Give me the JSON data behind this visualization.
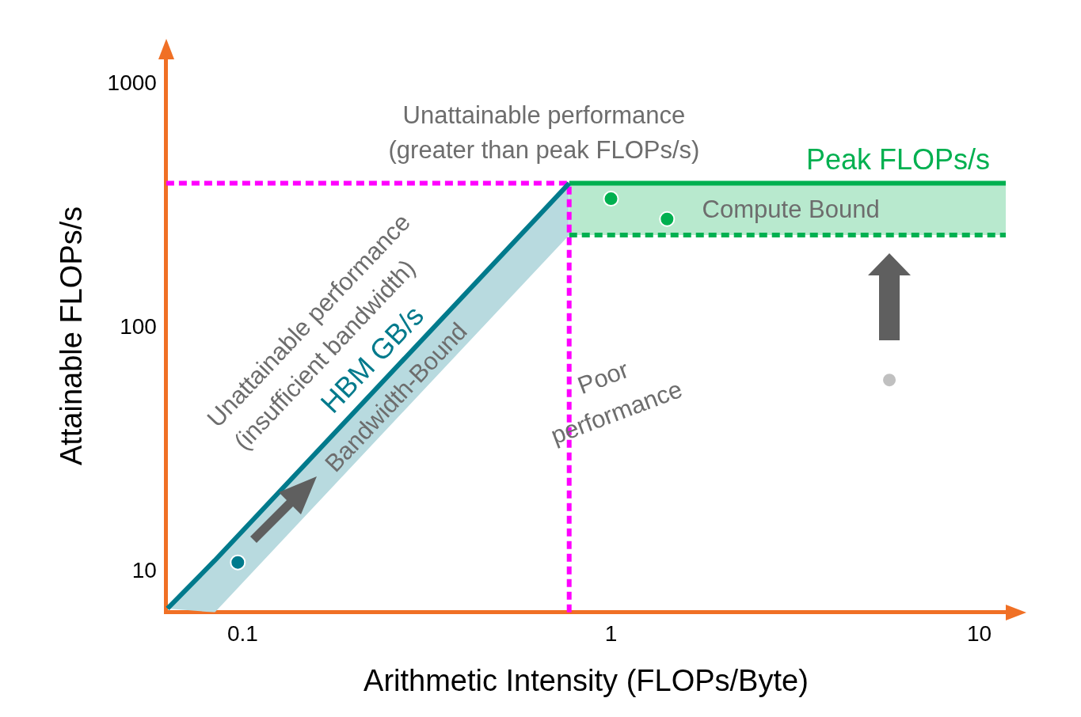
{
  "chart_data": {
    "type": "line",
    "xlabel": "Arithmetic Intensity (FLOPs/Byte)",
    "ylabel": "Attainable FLOPs/s",
    "log": "xy",
    "grid": false,
    "legend": false,
    "xlim": [
      0.062,
      11.8
    ],
    "ylim": [
      6.8,
      1260
    ],
    "xticks": [
      0.1,
      1,
      10
    ],
    "yticks": [
      10,
      100,
      1000
    ],
    "series": [
      {
        "name": "HBM GB/s",
        "color": "#007a8c",
        "x": [
          0.0625,
          0.084,
          0.77
        ],
        "values": [
          7.05,
          11.1,
          391
        ],
        "lower": [
          7.05,
          6.8,
          240
        ],
        "upper": [
          7.05,
          11.1,
          391
        ]
      },
      {
        "name": "Peak FLOPs/s",
        "color": "#00b050",
        "x": [
          0.77,
          11.8
        ],
        "values": [
          391,
          391
        ],
        "lower": [
          240,
          240
        ],
        "upper": [
          391,
          391
        ]
      },
      {
        "color": "#00b050",
        "line_style": "dashed",
        "x": [
          0.77,
          11.8
        ],
        "values": [
          240,
          240
        ]
      },
      {
        "color": "#ff00ff",
        "line_style": "dashed",
        "x": [
          0.062,
          0.77
        ],
        "values": [
          391,
          391
        ]
      },
      {
        "color": "#ff00ff",
        "line_style": "dashed",
        "x": [
          0.77,
          0.77
        ],
        "values": [
          6.8,
          391
        ]
      },
      {
        "type": "scatter",
        "marker": "circle",
        "color": "#007a8c",
        "x": [
          0.097
        ],
        "values": [
          10.9
        ]
      },
      {
        "type": "scatter",
        "marker": "circle",
        "color": "#00b050",
        "x": [
          1.0,
          1.42
        ],
        "values": [
          338,
          279
        ]
      },
      {
        "type": "scatter",
        "marker": "circle",
        "color": "#c0c0c0",
        "x": [
          5.7
        ],
        "values": [
          61
        ]
      }
    ],
    "annotations": [
      "Unattainable performance",
      "(greater than peak FLOPs/s)",
      "Unattainable performance",
      "(insufficient bandwidth)",
      "Bandwidth-Bound",
      "Poor",
      "performance",
      "Compute Bound"
    ]
  }
}
